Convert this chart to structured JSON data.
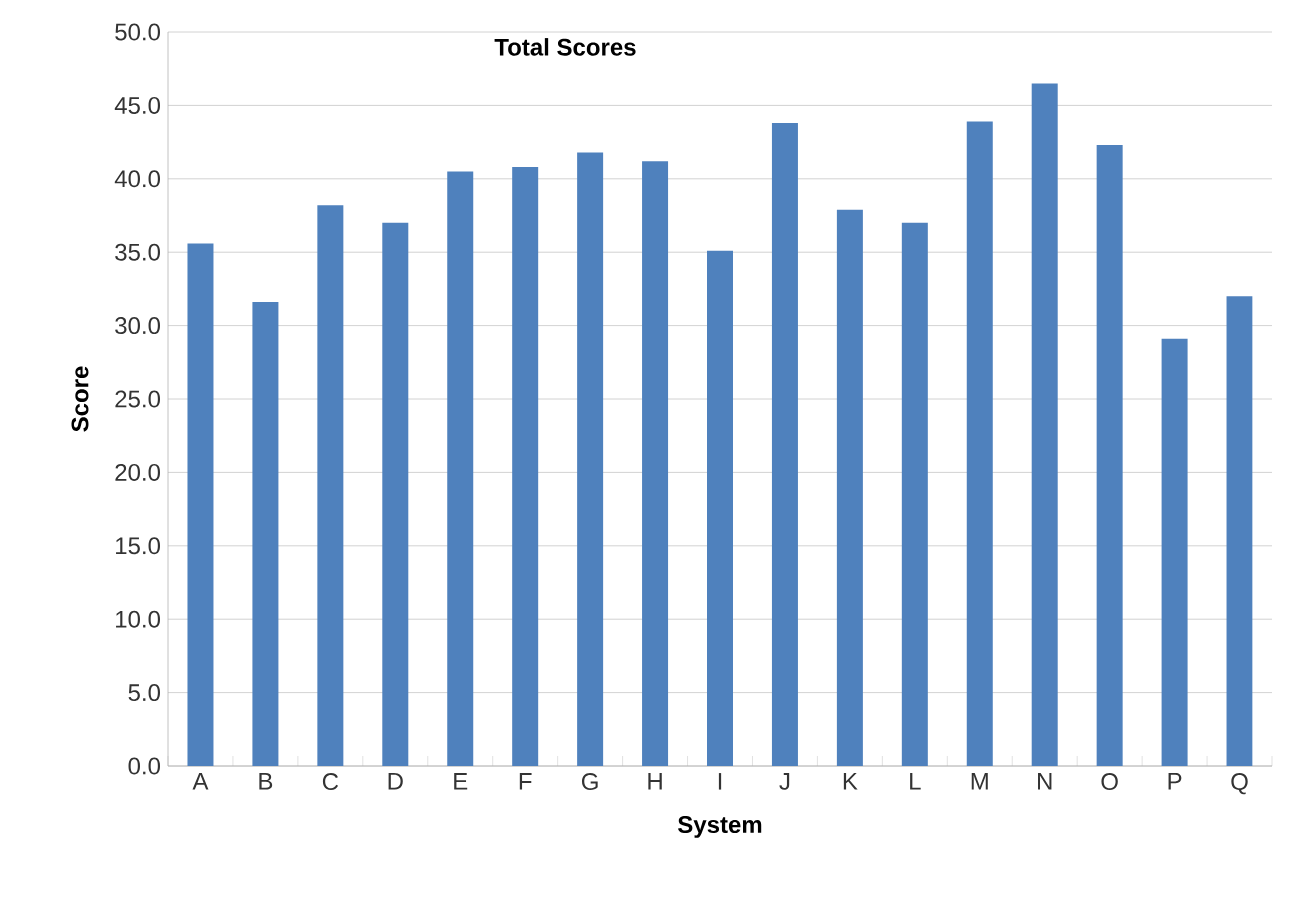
{
  "chart_data": {
    "type": "bar",
    "title": "Total Scores",
    "xlabel": "System",
    "ylabel": "Score",
    "categories": [
      "A",
      "B",
      "C",
      "D",
      "E",
      "F",
      "G",
      "H",
      "I",
      "J",
      "K",
      "L",
      "M",
      "N",
      "O",
      "P",
      "Q"
    ],
    "values": [
      35.6,
      31.6,
      38.2,
      37.0,
      40.5,
      40.8,
      41.8,
      41.2,
      35.1,
      43.8,
      37.9,
      37.0,
      43.9,
      46.5,
      42.3,
      29.1,
      32.0
    ],
    "color": "#4f81bd",
    "ylim": [
      0,
      50
    ],
    "yticks": [
      {
        "value": 0,
        "label": "0.0"
      },
      {
        "value": 5,
        "label": "5.0"
      },
      {
        "value": 10,
        "label": "10.0"
      },
      {
        "value": 15,
        "label": "15.0"
      },
      {
        "value": 20,
        "label": "20.0"
      },
      {
        "value": 25,
        "label": "25.0"
      },
      {
        "value": 30,
        "label": "30.0"
      },
      {
        "value": 35,
        "label": "35.0"
      },
      {
        "value": 40,
        "label": "40.0"
      },
      {
        "value": 45,
        "label": "45.0"
      },
      {
        "value": 50,
        "label": "50.0"
      }
    ],
    "grid": "y"
  }
}
